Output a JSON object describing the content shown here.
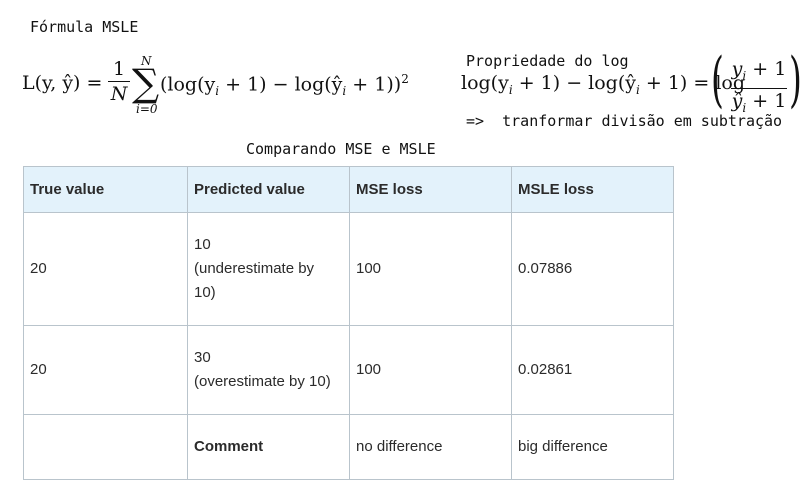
{
  "header": {
    "title_left": "Fórmula MSLE",
    "prop_line1": "Propriedade do log",
    "prop_line2": "=>  tranformar divisão em subtração",
    "table_title": "Comparando MSE e MSLE"
  },
  "formula_left": {
    "lhs": "L(y, ŷ) =",
    "frac_num": "1",
    "frac_den": "N",
    "sum_upper": "N",
    "sum_lower": "i=0",
    "body": "(log(y",
    "body2": " + 1) − log(ŷ",
    "body3": " + 1))",
    "sub_i": "i",
    "exp": "2"
  },
  "formula_right": {
    "lhs": "log(y",
    "mid": " + 1) − log(ŷ",
    "rhs": " + 1) = log",
    "sub_i": "i",
    "frac_num": "y",
    "frac_num_tail": " + 1",
    "frac_den": "ŷ",
    "frac_den_tail": " + 1",
    "paren_open": "(",
    "paren_close": ")"
  },
  "table": {
    "headers": [
      "True value",
      "Predicted value",
      "MSE loss",
      "MSLE loss"
    ],
    "rows": [
      [
        "20",
        "10\n(underestimate by\n10)",
        "100",
        "0.07886"
      ],
      [
        "20",
        "30\n(overestimate by 10)",
        "100",
        "0.02861"
      ],
      [
        "",
        "Comment",
        "no difference",
        "big difference"
      ]
    ]
  }
}
